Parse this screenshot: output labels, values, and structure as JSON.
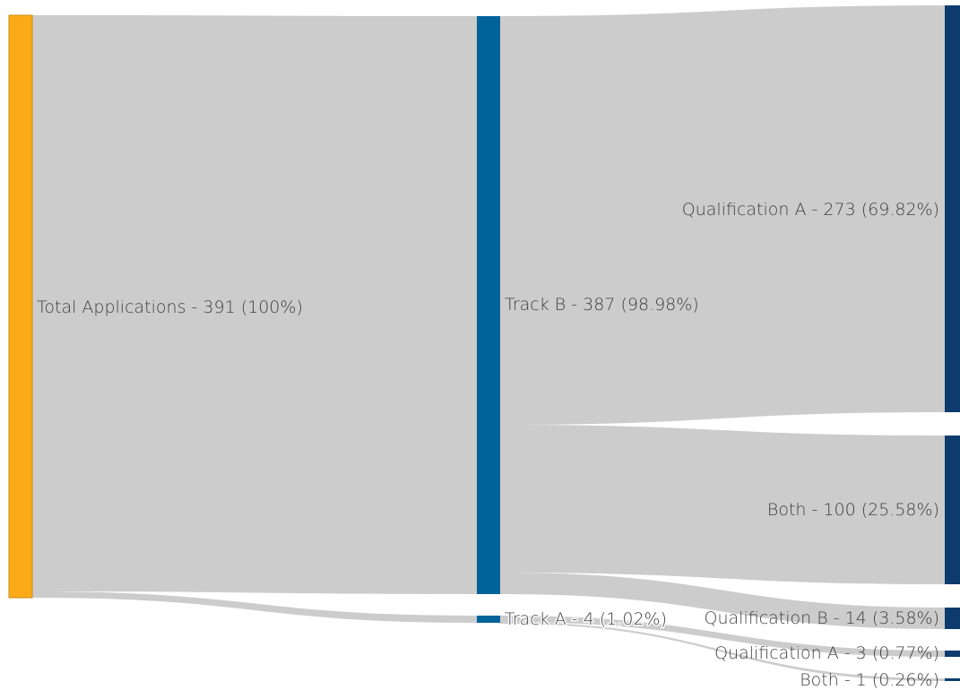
{
  "colors": {
    "link": "#cccccc",
    "root_node": "#fbab18",
    "root_node_border": "#c98b14",
    "track_node": "#006399",
    "outcome_node": "#0d3b6e",
    "label": "#3f3f3f"
  },
  "nodes": [
    {
      "id": "total",
      "label": "Total Applications - 391 (100%)",
      "value": 391,
      "percent": 100,
      "column": 0
    },
    {
      "id": "track_b",
      "label": "Track B - 387 (98.98%)",
      "value": 387,
      "percent": 98.98,
      "column": 1
    },
    {
      "id": "track_a",
      "label": "Track A - 4 (1.02%)",
      "value": 4,
      "percent": 1.02,
      "column": 1
    },
    {
      "id": "qual_a_b",
      "label": "Qualification A - 273 (69.82%)",
      "value": 273,
      "percent": 69.82,
      "column": 2
    },
    {
      "id": "both_b",
      "label": "Both - 100 (25.58%)",
      "value": 100,
      "percent": 25.58,
      "column": 2
    },
    {
      "id": "qual_b",
      "label": "Qualification B - 14 (3.58%)",
      "value": 14,
      "percent": 3.58,
      "column": 2
    },
    {
      "id": "qual_a_a",
      "label": "Qualification A - 3 (0.77%)",
      "value": 3,
      "percent": 0.77,
      "column": 2
    },
    {
      "id": "both_a",
      "label": "Both - 1 (0.26%)",
      "value": 1,
      "percent": 0.26,
      "column": 2
    }
  ],
  "links": [
    {
      "source": "total",
      "target": "track_b",
      "value": 387
    },
    {
      "source": "total",
      "target": "track_a",
      "value": 4
    },
    {
      "source": "track_b",
      "target": "qual_a_b",
      "value": 273
    },
    {
      "source": "track_b",
      "target": "both_b",
      "value": 100
    },
    {
      "source": "track_b",
      "target": "qual_b",
      "value": 14
    },
    {
      "source": "track_a",
      "target": "qual_a_a",
      "value": 3
    },
    {
      "source": "track_a",
      "target": "both_a",
      "value": 1
    }
  ]
}
